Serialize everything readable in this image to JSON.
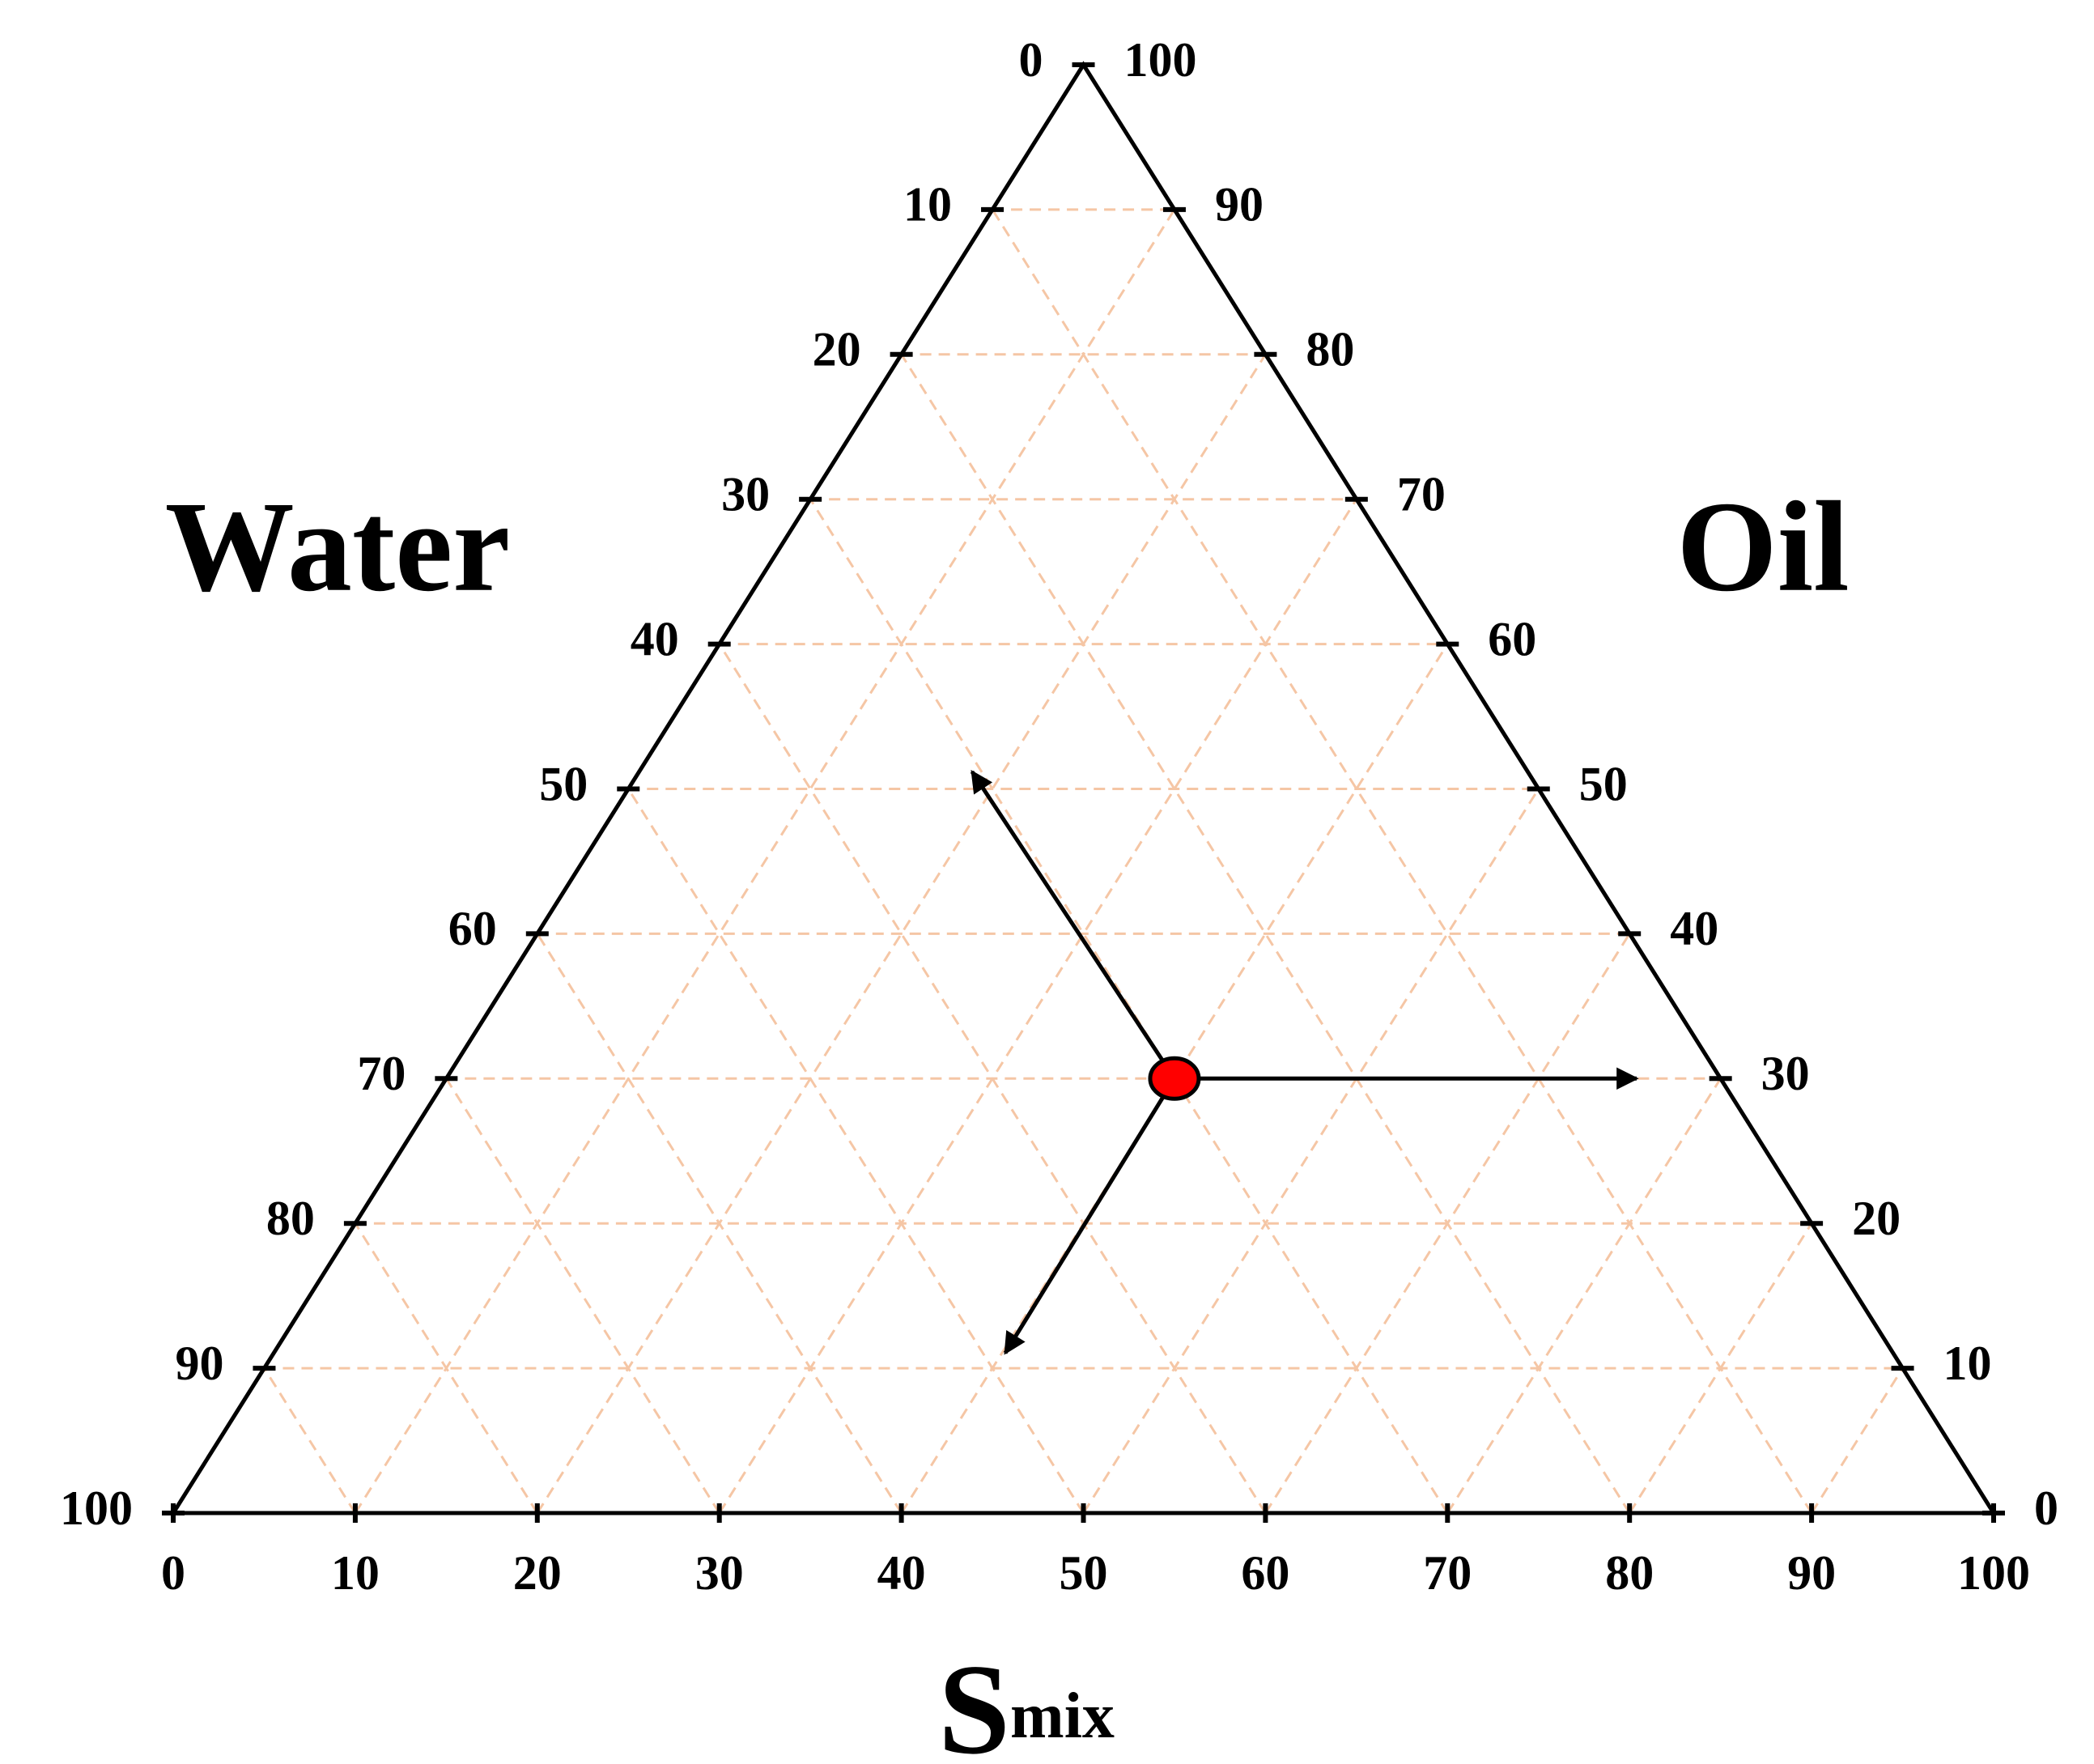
{
  "chart_data": {
    "type": "ternary",
    "left_label": "Water",
    "right_label": "Oil",
    "bottom_label": {
      "main": "S",
      "sub": "mix"
    },
    "xlim": [
      0,
      100
    ],
    "bottom_ticks": [
      0,
      10,
      20,
      30,
      40,
      50,
      60,
      70,
      80,
      90,
      100
    ],
    "left_ticks": [
      0,
      10,
      20,
      30,
      40,
      50,
      60,
      70,
      80,
      90,
      100
    ],
    "right_ticks": [
      0,
      10,
      20,
      30,
      40,
      50,
      60,
      70,
      80,
      90,
      100
    ],
    "grid": true,
    "grid_color": "#f5c6a5",
    "series": [
      {
        "color": "#ff0000",
        "x": [
          55
        ],
        "values": [
          30
        ]
      }
    ]
  }
}
